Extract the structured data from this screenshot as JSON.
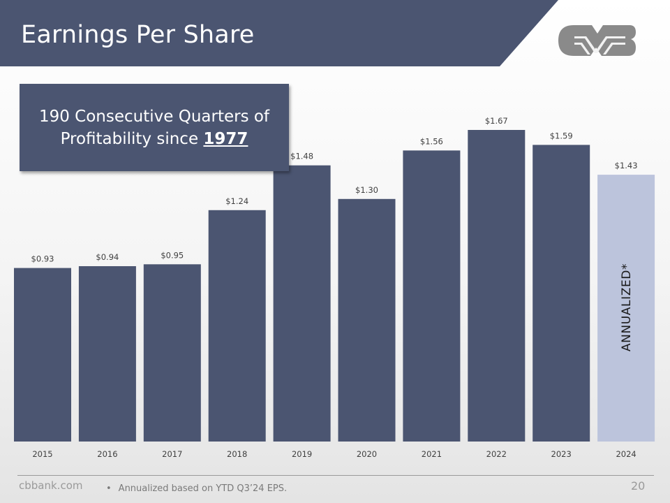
{
  "slide": {
    "title": "Earnings Per Share",
    "logo_icon": "cvb-logo",
    "colors": {
      "primary": "#4b5571",
      "highlight": "#bcc4dc",
      "logo": "#8a8a8a",
      "text": "#404040"
    }
  },
  "callout": {
    "line1": "190 Consecutive Quarters of",
    "line2_prefix": "Profitability since ",
    "line2_year": "1977"
  },
  "chart_data": {
    "type": "bar",
    "categories": [
      "2015",
      "2016",
      "2017",
      "2018",
      "2019",
      "2020",
      "2021",
      "2022",
      "2023",
      "2024"
    ],
    "values": [
      0.93,
      0.94,
      0.95,
      1.24,
      1.48,
      1.3,
      1.56,
      1.67,
      1.59,
      1.43
    ],
    "data_labels": [
      "$0.93",
      "$0.94",
      "$0.95",
      "$1.24",
      "$1.48",
      "$1.30",
      "$1.56",
      "$1.67",
      "$1.59",
      "$1.43"
    ],
    "highlighted_index": 9,
    "bar_color": "#4b5571",
    "highlight_color": "#bcc4dc",
    "title": "",
    "xlabel": "",
    "ylabel": "",
    "ylim": [
      0,
      1.67
    ],
    "grid": false,
    "annotation": "ANNUALIZED*"
  },
  "footer": {
    "website": "cbbank.com",
    "bullet": "•",
    "footnote": "Annualized based on YTD Q3’24 EPS.",
    "page_number": "20"
  }
}
